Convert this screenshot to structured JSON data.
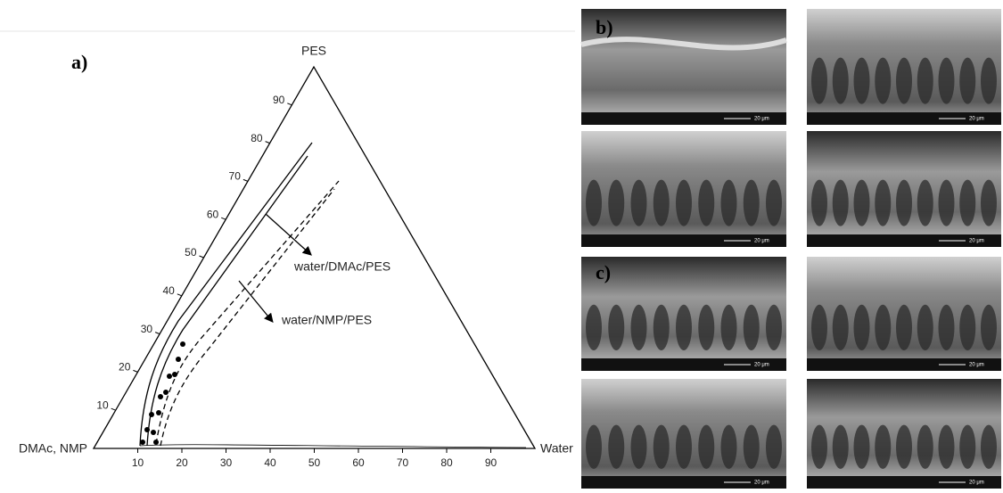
{
  "panel_a": {
    "label": "a)",
    "apex_top": "PES",
    "apex_left": "DMAc, NMP",
    "apex_right": "Water",
    "left_axis_ticks": [
      10,
      20,
      30,
      40,
      50,
      60,
      70,
      80,
      90
    ],
    "bottom_axis_ticks": [
      10,
      20,
      30,
      40,
      50,
      60,
      70,
      80,
      90
    ],
    "annotations": [
      "water/DMAc/PES",
      "water/NMP/PES"
    ]
  },
  "panels": [
    {
      "label": "b)"
    },
    {
      "label": "c)"
    }
  ],
  "scale_bar": "20 μm"
}
